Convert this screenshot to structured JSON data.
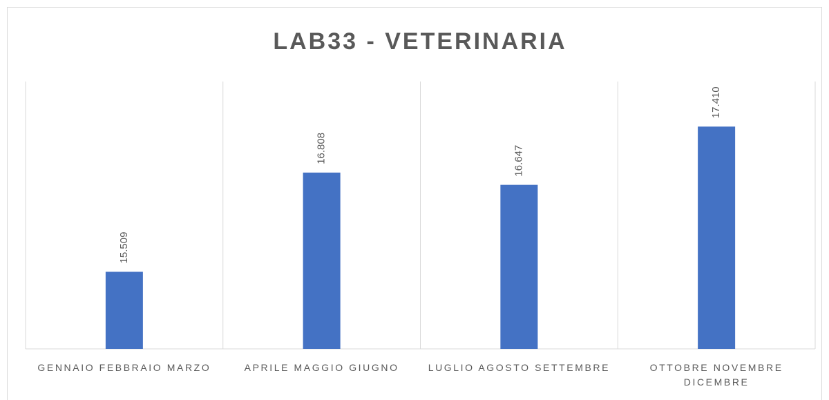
{
  "chart_data": {
    "type": "bar",
    "title": "LAB33 - VETERINARIA",
    "categories": [
      "GENNAIO FEBBRAIO MARZO",
      "APRILE MAGGIO GIUGNO",
      "LUGLIO AGOSTO SETTEMBRE",
      "OTTOBRE NOVEMBRE DICEMBRE"
    ],
    "values": [
      15509,
      16808,
      16647,
      17410
    ],
    "value_labels": [
      "15.509",
      "16.808",
      "16.647",
      "17.410"
    ],
    "color": "#4472c4",
    "ylim": [
      14500,
      18000
    ]
  }
}
